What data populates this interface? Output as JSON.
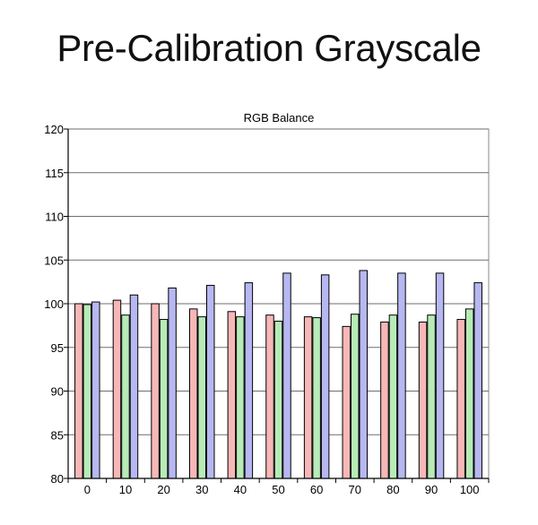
{
  "page": {
    "title": "Pre-Calibration Grayscale"
  },
  "chart_data": {
    "type": "bar",
    "title": "RGB Balance",
    "xlabel": "",
    "ylabel": "",
    "categories": [
      "0",
      "10",
      "20",
      "30",
      "40",
      "50",
      "60",
      "70",
      "80",
      "90",
      "100"
    ],
    "series": [
      {
        "color": "#f7b7b7",
        "values": [
          100.0,
          100.4,
          100.0,
          99.4,
          99.1,
          98.7,
          98.5,
          97.4,
          97.9,
          97.9,
          98.2
        ]
      },
      {
        "color": "#b7ebb7",
        "values": [
          99.9,
          98.7,
          98.2,
          98.5,
          98.5,
          98.0,
          98.4,
          98.8,
          98.7,
          98.7,
          99.4
        ]
      },
      {
        "color": "#b7b7f2",
        "values": [
          100.2,
          101.0,
          101.8,
          102.1,
          102.4,
          103.5,
          103.3,
          103.8,
          103.5,
          103.5,
          102.4
        ]
      }
    ],
    "yticks": [
      80,
      85,
      90,
      95,
      100,
      105,
      110,
      115,
      120
    ],
    "ylim": [
      80,
      120
    ],
    "grid": true,
    "legend": "none"
  }
}
